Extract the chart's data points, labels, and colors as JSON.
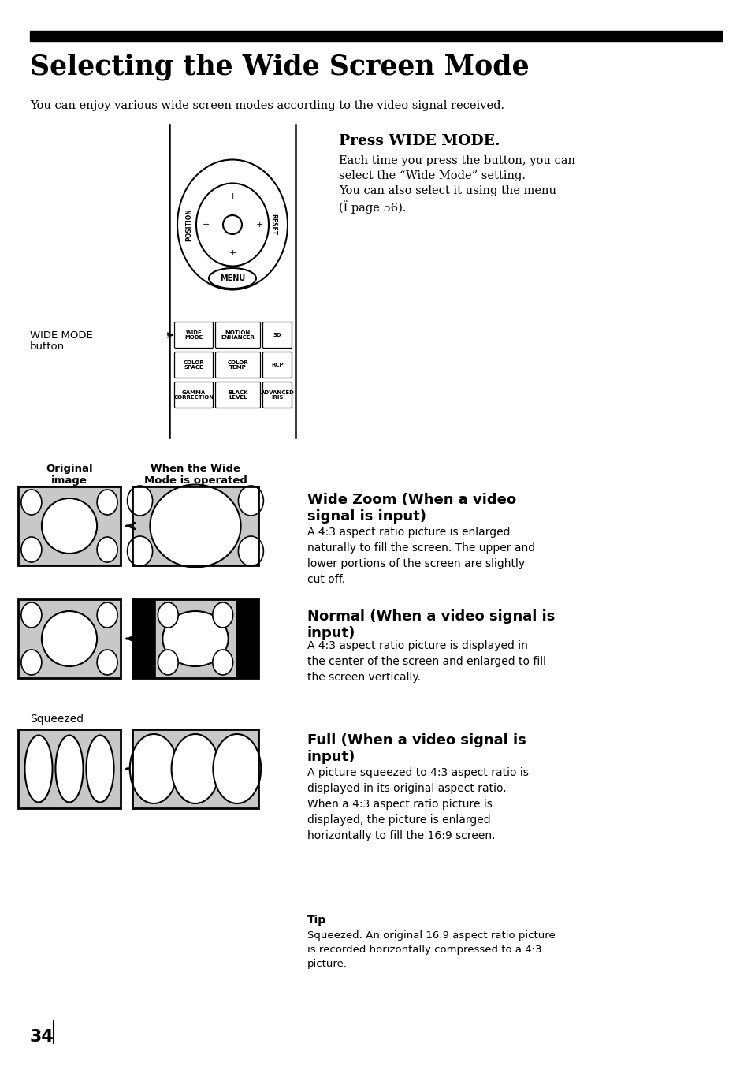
{
  "title": "Selecting the Wide Screen Mode",
  "subtitle": "You can enjoy various wide screen modes according to the video signal received.",
  "press_wide_mode_title": "Press WIDE MODE.",
  "press_wide_mode_text1": "Each time you press the button, you can",
  "press_wide_mode_text2": "select the “Wide Mode” setting.",
  "press_wide_mode_text3": "You can also select it using the menu",
  "press_wide_mode_text4": "(Ï page 56).",
  "wide_mode_label1": "WIDE MODE",
  "wide_mode_label2": "button",
  "original_image_label": "Original\nimage",
  "when_wide_label": "When the Wide\nMode is operated",
  "wide_zoom_title": "Wide Zoom (When a video\nsignal is input)",
  "wide_zoom_text": "A 4:3 aspect ratio picture is enlarged\nnaturally to fill the screen. The upper and\nlower portions of the screen are slightly\ncut off.",
  "normal_title": "Normal (When a video signal is\ninput)",
  "normal_text": "A 4:3 aspect ratio picture is displayed in\nthe center of the screen and enlarged to fill\nthe screen vertically.",
  "full_title": "Full (When a video signal is\ninput)",
  "full_text": "A picture squeezed to 4:3 aspect ratio is\ndisplayed in its original aspect ratio.\nWhen a 4:3 aspect ratio picture is\ndisplayed, the picture is enlarged\nhorizontally to fill the 16:9 screen.",
  "squeezed_label": "Squeezed",
  "tip_title": "Tip",
  "tip_text": "Squeezed: An original 16:9 aspect ratio picture\nis recorded horizontally compressed to a 4:3\npicture.",
  "page_number": "34",
  "bg_color": "#ffffff",
  "gray_color": "#c8c8c8",
  "black": "#000000"
}
